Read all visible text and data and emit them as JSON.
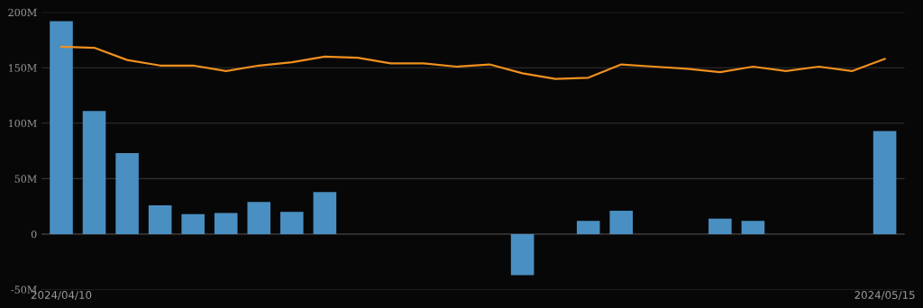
{
  "chart_data": {
    "type": "bar",
    "categories": [
      "2024/04/10",
      null,
      null,
      null,
      null,
      null,
      null,
      null,
      null,
      null,
      null,
      null,
      null,
      null,
      null,
      null,
      null,
      null,
      null,
      null,
      null,
      null,
      null,
      null,
      null,
      "2024/05/15"
    ],
    "series": [
      {
        "color": "#4a8fc2",
        "values": [
          192,
          111,
          73,
          26,
          18,
          19,
          29,
          20,
          38,
          0,
          0,
          0,
          0,
          0,
          -37,
          0,
          12,
          21,
          0,
          0,
          14,
          12,
          0,
          0,
          0,
          93
        ]
      },
      {
        "type": "line",
        "color": "#f0901e",
        "values": [
          169,
          168,
          157,
          152,
          152,
          147,
          152,
          155,
          160,
          159,
          154,
          154,
          151,
          153,
          145,
          140,
          141,
          153,
          151,
          149,
          146,
          151,
          147,
          151,
          147,
          158
        ]
      }
    ],
    "ylim": [
      -50,
      200
    ],
    "yticks": [
      {
        "value": -50,
        "label": "-50M"
      },
      {
        "value": 0,
        "label": "0"
      },
      {
        "value": 50,
        "label": "50M"
      },
      {
        "value": 100,
        "label": "100M"
      },
      {
        "value": 150,
        "label": "150M"
      },
      {
        "value": 200,
        "label": "200M"
      }
    ],
    "grid": "y",
    "marker": "none",
    "line_style": "solid"
  }
}
